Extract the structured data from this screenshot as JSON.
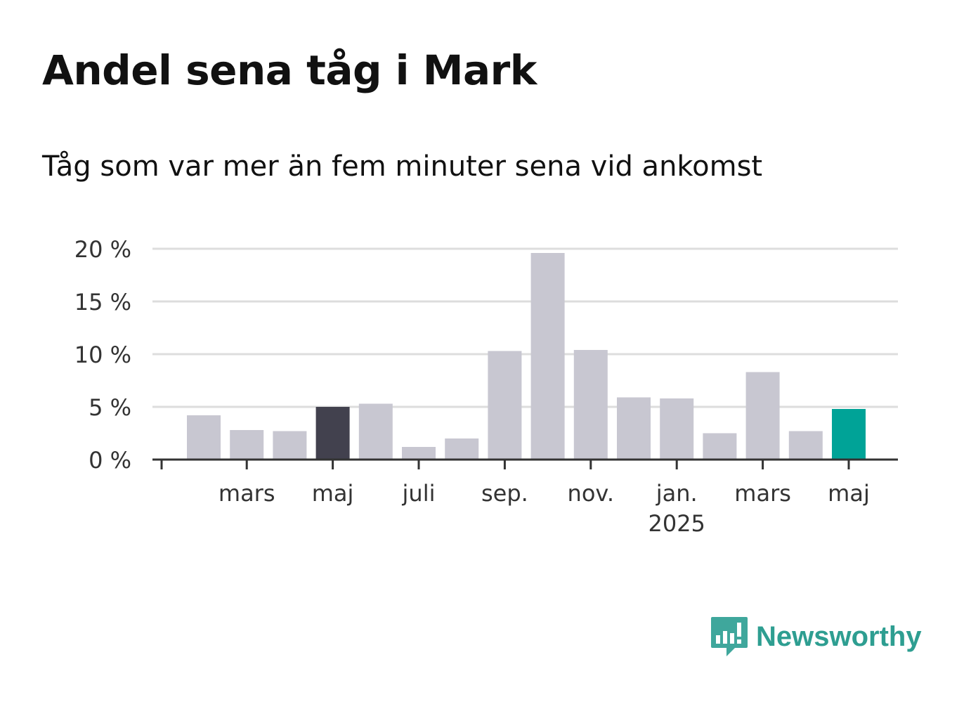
{
  "title": "Andel sena tåg i Mark",
  "subtitle": "Tåg som var mer än fem minuter sena vid ankomst",
  "brand": {
    "name": "Newsworthy",
    "icon": "newsworthy-logo-icon",
    "color": "#2e9e91"
  },
  "colors": {
    "default_bar": "#c8c7d1",
    "highlight_prev": "#42414e",
    "highlight_current": "#00a397",
    "grid": "#dddddd",
    "axis": "#333333"
  },
  "chart_data": {
    "type": "bar",
    "title": "Andel sena tåg i Mark",
    "subtitle": "Tåg som var mer än fem minuter sena vid ankomst",
    "unit": "%",
    "ylim": [
      0,
      20
    ],
    "yticks": [
      0,
      5,
      10,
      15,
      20
    ],
    "ytick_labels": [
      "0 %",
      "5 %",
      "10 %",
      "15 %",
      "20 %"
    ],
    "grid": true,
    "categories": [
      "2024-02",
      "2024-03",
      "2024-04",
      "2024-05",
      "2024-06",
      "2024-07",
      "2024-08",
      "2024-09",
      "2024-10",
      "2024-11",
      "2024-12",
      "2025-01",
      "2025-02",
      "2025-03",
      "2025-04",
      "2025-05"
    ],
    "values": [
      4.2,
      2.8,
      2.7,
      5.0,
      5.3,
      1.2,
      2.0,
      10.3,
      19.6,
      10.4,
      5.9,
      5.8,
      2.5,
      8.3,
      2.7,
      4.8
    ],
    "highlight": {
      "2024-05": "previous",
      "2025-05": "current"
    },
    "xtick_labels": [
      {
        "category": "2024-03",
        "label": "mars"
      },
      {
        "category": "2024-05",
        "label": "maj"
      },
      {
        "category": "2024-07",
        "label": "juli"
      },
      {
        "category": "2024-09",
        "label": "sep."
      },
      {
        "category": "2024-11",
        "label": "nov."
      },
      {
        "category": "2025-01",
        "label": "jan.",
        "sublabel": "2025"
      },
      {
        "category": "2025-03",
        "label": "mars"
      },
      {
        "category": "2025-05",
        "label": "maj"
      }
    ]
  }
}
